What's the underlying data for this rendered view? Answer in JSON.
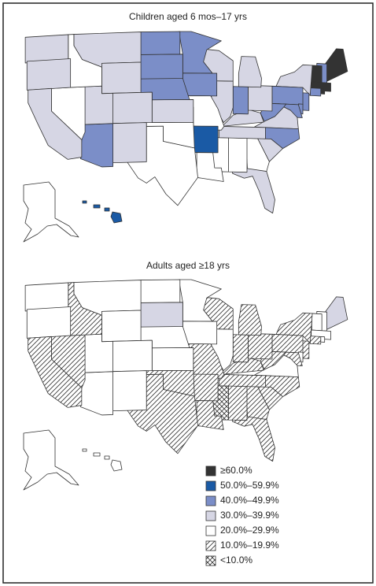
{
  "maps": [
    {
      "title": "Children aged 6 mos–17 yrs",
      "states": {
        "ME": 0,
        "NH": 2,
        "VT": 0,
        "MA": 0,
        "RI": 0,
        "CT": 2,
        "NY": 3,
        "NJ": 2,
        "PA": 2,
        "DE": 2,
        "MD": 2,
        "WV": 2,
        "VA": 3,
        "NC": 2,
        "SC": 3,
        "GA": 4,
        "FL": 3,
        "AL": 4,
        "MS": 4,
        "TN": 3,
        "KY": 3,
        "OH": 3,
        "IN": 2,
        "IL": 3,
        "MI": 3,
        "WI": 3,
        "MN": 2,
        "IA": 2,
        "MO": 4,
        "AR": 1,
        "LA": 4,
        "TX": 4,
        "OK": 4,
        "KS": 3,
        "NE": 2,
        "SD": 2,
        "ND": 2,
        "MT": 3,
        "WY": 3,
        "CO": 3,
        "NM": 3,
        "AZ": 2,
        "UT": 3,
        "NV": 4,
        "ID": 4,
        "WA": 3,
        "OR": 3,
        "CA": 3,
        "AK": 4,
        "HI": 1
      }
    },
    {
      "title": "Adults aged ≥18 yrs",
      "states": {
        "ME": 3,
        "NH": 4,
        "VT": 4,
        "MA": 4,
        "RI": 4,
        "CT": 5,
        "NY": 5,
        "NJ": 5,
        "PA": 5,
        "DE": 4,
        "MD": 5,
        "WV": 5,
        "VA": 4,
        "NC": 5,
        "SC": 5,
        "GA": 5,
        "FL": 5,
        "AL": 5,
        "MS": 6,
        "TN": 5,
        "KY": 5,
        "OH": 5,
        "IN": 5,
        "IL": 4,
        "MI": 5,
        "WI": 5,
        "MN": 4,
        "IA": 4,
        "MO": 5,
        "AR": 5,
        "LA": 5,
        "TX": 5,
        "OK": 5,
        "KS": 4,
        "NE": 4,
        "SD": 3,
        "ND": 4,
        "MT": 4,
        "WY": 4,
        "CO": 4,
        "NM": 4,
        "AZ": 4,
        "UT": 4,
        "NV": 5,
        "ID": 5,
        "WA": 4,
        "OR": 4,
        "CA": 5,
        "AK": 4,
        "HI": 4
      }
    }
  ],
  "legend": [
    {
      "label": "≥60.0%",
      "color": "#333333"
    },
    {
      "label": "50.0%–59.9%",
      "color": "#1a5aa5"
    },
    {
      "label": "40.0%–49.9%",
      "color": "#7b8ec8"
    },
    {
      "label": "30.0%–39.9%",
      "color": "#d6d6e4"
    },
    {
      "label": "20.0%–29.9%",
      "color": "#ffffff"
    },
    {
      "label": "10.0%–19.9%",
      "color": "#ffffff",
      "pattern": "hatch"
    },
    {
      "label": "<10.0%",
      "color": "#ffffff",
      "pattern": "cross"
    }
  ]
}
